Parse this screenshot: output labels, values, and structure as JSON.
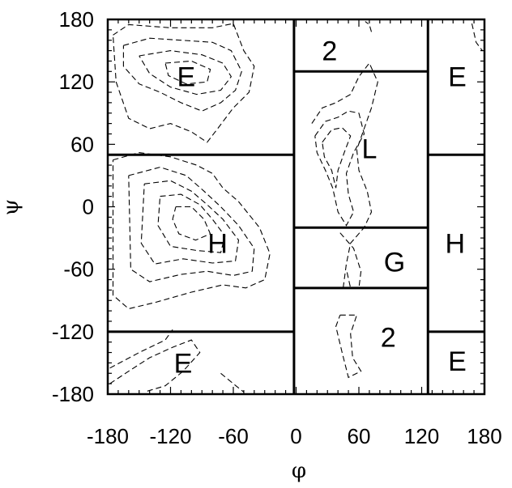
{
  "chart_data": {
    "type": "contour",
    "xlabel": "φ",
    "ylabel": "ψ",
    "xlim": [
      -180,
      180
    ],
    "ylim": [
      -180,
      180
    ],
    "xticks": [
      -180,
      -120,
      -60,
      0,
      60,
      120,
      180
    ],
    "yticks": [
      180,
      120,
      60,
      0,
      -60,
      -120,
      -180
    ],
    "xtick_labels": [
      "-180",
      "-120",
      "-60",
      "0",
      "60",
      "120",
      "180"
    ],
    "ytick_labels": [
      "180",
      "120",
      "60",
      "0",
      "-60",
      "-120",
      "-180"
    ],
    "grid": false,
    "line_style": "dashed",
    "boundaries": [
      {
        "x1": -180,
        "x2": -2,
        "y1": 50,
        "y2": 50
      },
      {
        "x1": -180,
        "x2": -2,
        "y1": -120,
        "y2": -120
      },
      {
        "x1": -2,
        "x2": -2,
        "y1": -180,
        "y2": 180
      },
      {
        "x1": -2,
        "x2": 126,
        "y1": 130,
        "y2": 130
      },
      {
        "x1": -2,
        "x2": 126,
        "y1": -20,
        "y2": -20
      },
      {
        "x1": -2,
        "x2": 126,
        "y1": -78,
        "y2": -78
      },
      {
        "x1": 126,
        "x2": 126,
        "y1": -180,
        "y2": 180
      },
      {
        "x1": 126,
        "x2": 180,
        "y1": 50,
        "y2": 50
      },
      {
        "x1": 126,
        "x2": 180,
        "y1": -120,
        "y2": -120
      }
    ],
    "regions": [
      {
        "label": "E",
        "phi": -105,
        "psi": 125
      },
      {
        "label": "H",
        "phi": -75,
        "psi": -35
      },
      {
        "label": "E",
        "phi": -108,
        "psi": -150
      },
      {
        "label": "2",
        "phi": 32,
        "psi": 150
      },
      {
        "label": "L",
        "phi": 70,
        "psi": 56
      },
      {
        "label": "G",
        "phi": 94,
        "psi": -53
      },
      {
        "label": "2",
        "phi": 88,
        "psi": -125
      },
      {
        "label": "E",
        "phi": 154,
        "psi": 125
      },
      {
        "label": "H",
        "phi": 152,
        "psi": -35
      },
      {
        "label": "E",
        "phi": 154,
        "psi": -148
      }
    ],
    "contours": [
      [
        [
          -175,
          165
        ],
        [
          -160,
          175
        ],
        [
          -120,
          172
        ],
        [
          -80,
          172
        ],
        [
          -60,
          176
        ],
        [
          -50,
          150
        ],
        [
          -40,
          135
        ],
        [
          -45,
          110
        ],
        [
          -60,
          95
        ],
        [
          -75,
          75
        ],
        [
          -85,
          62
        ],
        [
          -100,
          72
        ],
        [
          -120,
          80
        ],
        [
          -140,
          75
        ],
        [
          -160,
          85
        ],
        [
          -172,
          120
        ],
        [
          -175,
          165
        ]
      ],
      [
        [
          -165,
          155
        ],
        [
          -140,
          162
        ],
        [
          -110,
          160
        ],
        [
          -80,
          158
        ],
        [
          -62,
          150
        ],
        [
          -52,
          130
        ],
        [
          -58,
          112
        ],
        [
          -72,
          100
        ],
        [
          -90,
          92
        ],
        [
          -110,
          100
        ],
        [
          -130,
          110
        ],
        [
          -150,
          118
        ],
        [
          -165,
          135
        ],
        [
          -165,
          155
        ]
      ],
      [
        [
          -150,
          145
        ],
        [
          -120,
          150
        ],
        [
          -90,
          146
        ],
        [
          -70,
          138
        ],
        [
          -62,
          125
        ],
        [
          -72,
          112
        ],
        [
          -95,
          108
        ],
        [
          -120,
          115
        ],
        [
          -140,
          128
        ],
        [
          -150,
          145
        ]
      ],
      [
        [
          -125,
          138
        ],
        [
          -100,
          140
        ],
        [
          -82,
          132
        ],
        [
          -85,
          120
        ],
        [
          -105,
          118
        ],
        [
          -122,
          126
        ],
        [
          -125,
          138
        ]
      ],
      [
        [
          -175,
          45
        ],
        [
          -150,
          52
        ],
        [
          -120,
          48
        ],
        [
          -95,
          40
        ],
        [
          -80,
          32
        ],
        [
          -70,
          18
        ],
        [
          -55,
          5
        ],
        [
          -35,
          -20
        ],
        [
          -25,
          -45
        ],
        [
          -30,
          -70
        ],
        [
          -48,
          -78
        ],
        [
          -70,
          -75
        ],
        [
          -100,
          -82
        ],
        [
          -135,
          -92
        ],
        [
          -160,
          -98
        ],
        [
          -175,
          -85
        ],
        [
          -175,
          45
        ]
      ],
      [
        [
          -160,
          30
        ],
        [
          -130,
          38
        ],
        [
          -105,
          30
        ],
        [
          -88,
          15
        ],
        [
          -72,
          0
        ],
        [
          -55,
          -18
        ],
        [
          -40,
          -40
        ],
        [
          -42,
          -62
        ],
        [
          -60,
          -66
        ],
        [
          -85,
          -62
        ],
        [
          -110,
          -65
        ],
        [
          -140,
          -72
        ],
        [
          -158,
          -60
        ],
        [
          -160,
          30
        ]
      ],
      [
        [
          -145,
          22
        ],
        [
          -120,
          25
        ],
        [
          -100,
          15
        ],
        [
          -85,
          2
        ],
        [
          -70,
          -12
        ],
        [
          -55,
          -32
        ],
        [
          -58,
          -52
        ],
        [
          -80,
          -54
        ],
        [
          -108,
          -50
        ],
        [
          -135,
          -55
        ],
        [
          -148,
          -35
        ],
        [
          -145,
          22
        ]
      ],
      [
        [
          -130,
          10
        ],
        [
          -110,
          12
        ],
        [
          -92,
          2
        ],
        [
          -80,
          -12
        ],
        [
          -68,
          -28
        ],
        [
          -72,
          -44
        ],
        [
          -95,
          -42
        ],
        [
          -120,
          -38
        ],
        [
          -132,
          -18
        ],
        [
          -130,
          10
        ]
      ],
      [
        [
          -115,
          0
        ],
        [
          -100,
          0
        ],
        [
          -88,
          -12
        ],
        [
          -82,
          -26
        ],
        [
          -96,
          -32
        ],
        [
          -112,
          -26
        ],
        [
          -118,
          -12
        ],
        [
          -115,
          0
        ]
      ],
      [
        [
          -178,
          -170
        ],
        [
          -160,
          -158
        ],
        [
          -140,
          -145
        ],
        [
          -118,
          -135
        ],
        [
          -100,
          -128
        ],
        [
          -92,
          -140
        ],
        [
          -108,
          -158
        ],
        [
          -125,
          -172
        ],
        [
          -145,
          -178
        ]
      ],
      [
        [
          -178,
          -155
        ],
        [
          -150,
          -140
        ],
        [
          -125,
          -128
        ],
        [
          -118,
          -118
        ]
      ],
      [
        [
          -72,
          -160
        ],
        [
          -60,
          -170
        ],
        [
          -50,
          -178
        ]
      ],
      [
        [
          15,
          80
        ],
        [
          25,
          95
        ],
        [
          38,
          100
        ],
        [
          52,
          108
        ],
        [
          60,
          125
        ],
        [
          70,
          138
        ],
        [
          78,
          120
        ],
        [
          72,
          95
        ],
        [
          65,
          75
        ],
        [
          58,
          55
        ],
        [
          60,
          35
        ],
        [
          68,
          15
        ],
        [
          72,
          -5
        ],
        [
          65,
          -20
        ],
        [
          52,
          -35
        ],
        [
          48,
          -55
        ],
        [
          45,
          -78
        ]
      ],
      [
        [
          18,
          68
        ],
        [
          28,
          82
        ],
        [
          40,
          86
        ],
        [
          50,
          92
        ],
        [
          60,
          90
        ],
        [
          65,
          70
        ],
        [
          55,
          52
        ],
        [
          48,
          32
        ],
        [
          50,
          12
        ],
        [
          55,
          -5
        ],
        [
          48,
          -18
        ],
        [
          40,
          -5
        ],
        [
          35,
          18
        ],
        [
          28,
          35
        ],
        [
          20,
          52
        ],
        [
          18,
          68
        ]
      ],
      [
        [
          25,
          62
        ],
        [
          34,
          74
        ],
        [
          44,
          76
        ],
        [
          52,
          68
        ],
        [
          46,
          52
        ],
        [
          40,
          35
        ],
        [
          38,
          18
        ],
        [
          34,
          35
        ],
        [
          27,
          48
        ],
        [
          25,
          62
        ]
      ],
      [
        [
          42,
          -25
        ],
        [
          55,
          -40
        ],
        [
          62,
          -62
        ],
        [
          60,
          -78
        ],
        [
          52,
          -78
        ],
        [
          48,
          -60
        ]
      ],
      [
        [
          42,
          -104
        ],
        [
          58,
          -104
        ],
        [
          52,
          -122
        ],
        [
          54,
          -145
        ],
        [
          62,
          -158
        ],
        [
          50,
          -164
        ],
        [
          44,
          -140
        ],
        [
          38,
          -115
        ],
        [
          42,
          -104
        ]
      ],
      [
        [
          72,
          168
        ],
        [
          70,
          175
        ],
        [
          66,
          178
        ]
      ],
      [
        [
          168,
          176
        ],
        [
          172,
          158
        ],
        [
          178,
          150
        ]
      ]
    ]
  }
}
